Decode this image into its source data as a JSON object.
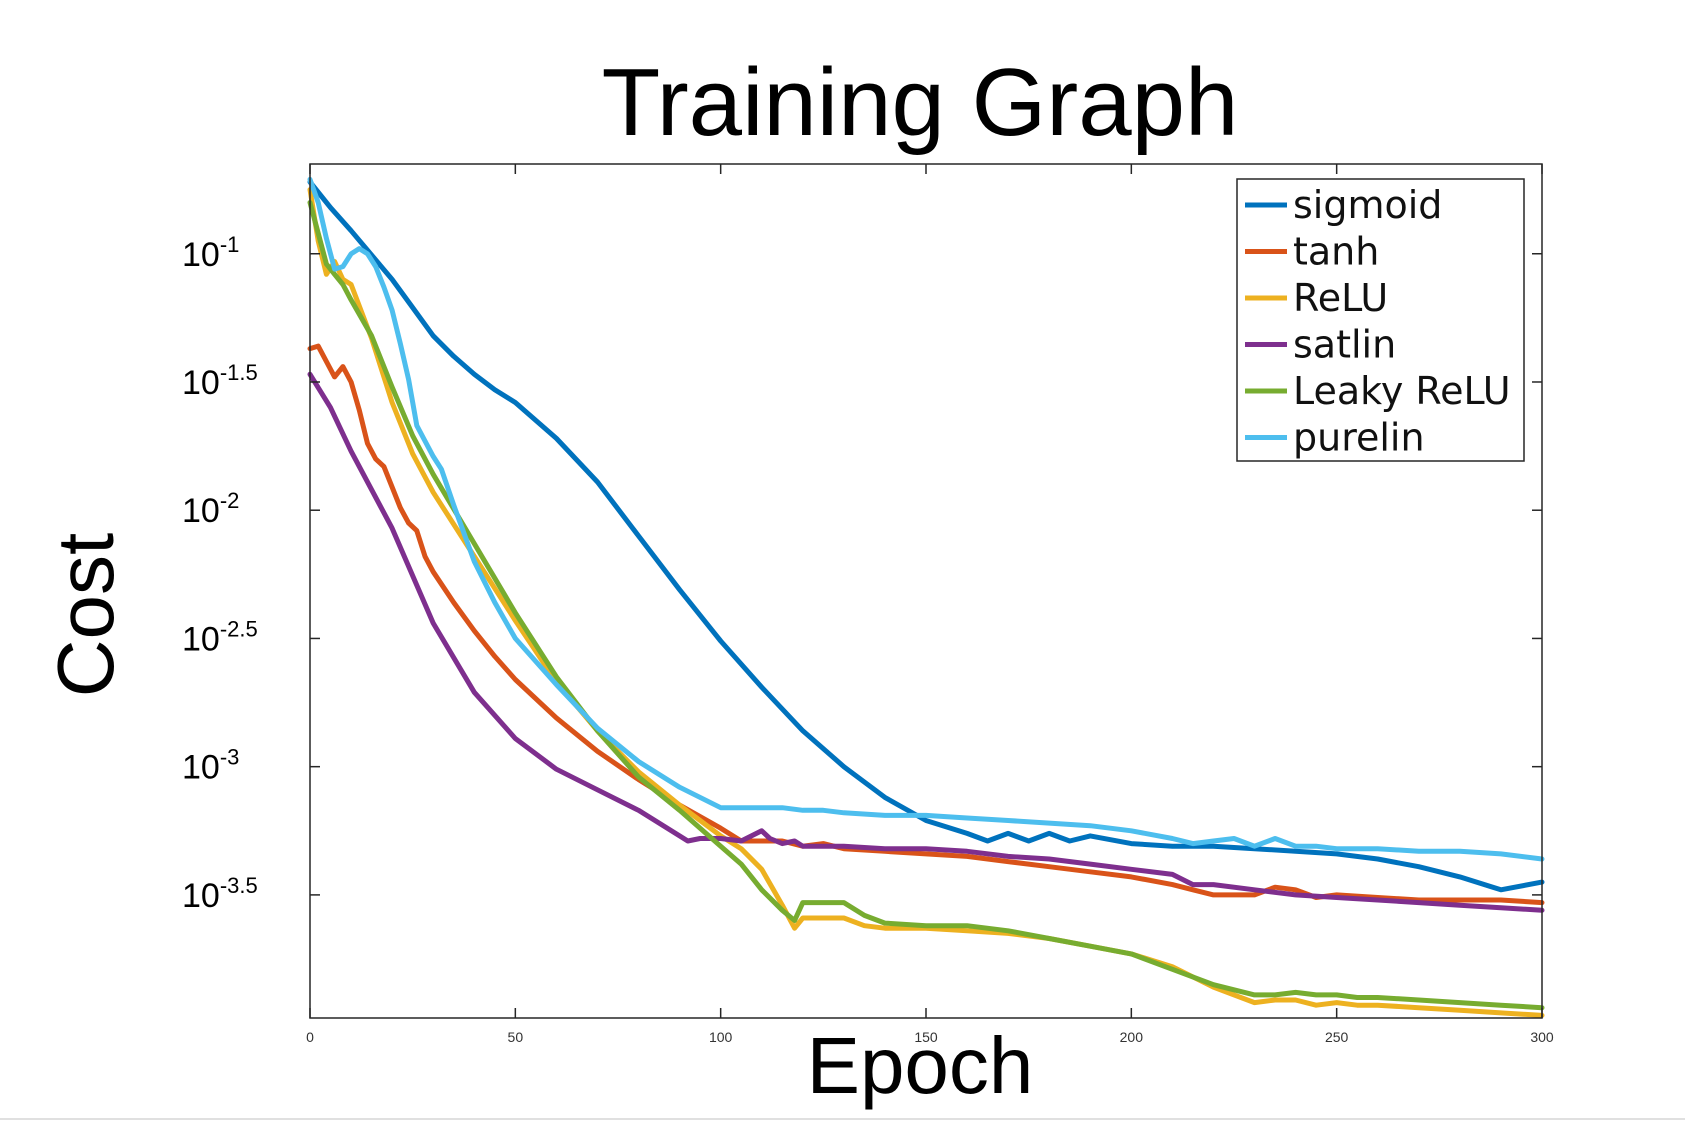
{
  "chart_data": {
    "type": "line",
    "title": "Training Graph",
    "xlabel": "Epoch",
    "ylabel": "Cost",
    "xlim": [
      0,
      300
    ],
    "ylog": true,
    "ylim_log10": [
      -3.98,
      -0.65
    ],
    "xticks": [
      0,
      50,
      100,
      150,
      200,
      250,
      300
    ],
    "xtick_labels": [
      "0",
      "50",
      "100",
      "150",
      "200",
      "250",
      "300"
    ],
    "yticks_log10": [
      -1,
      -1.5,
      -2,
      -2.5,
      -3,
      -3.5
    ],
    "ytick_labels": [
      {
        "base": "10",
        "exp": "-1"
      },
      {
        "base": "10",
        "exp": "-1.5"
      },
      {
        "base": "10",
        "exp": "-2"
      },
      {
        "base": "10",
        "exp": "-2.5"
      },
      {
        "base": "10",
        "exp": "-3"
      },
      {
        "base": "10",
        "exp": "-3.5"
      }
    ],
    "grid": false,
    "legend_position": "top-right",
    "series": [
      {
        "name": "sigmoid",
        "color": "#0072bd",
        "x": [
          0,
          5,
          10,
          20,
          25,
          30,
          35,
          40,
          45,
          50,
          60,
          70,
          80,
          90,
          100,
          110,
          120,
          130,
          140,
          150,
          160,
          165,
          170,
          175,
          180,
          185,
          190,
          200,
          210,
          220,
          230,
          240,
          250,
          260,
          270,
          280,
          290,
          300
        ],
        "y": [
          -0.72,
          -0.82,
          -0.91,
          -1.1,
          -1.21,
          -1.32,
          -1.4,
          -1.47,
          -1.53,
          -1.58,
          -1.72,
          -1.89,
          -2.1,
          -2.31,
          -2.51,
          -2.69,
          -2.86,
          -3.0,
          -3.12,
          -3.21,
          -3.26,
          -3.29,
          -3.26,
          -3.29,
          -3.26,
          -3.29,
          -3.27,
          -3.3,
          -3.31,
          -3.31,
          -3.32,
          -3.33,
          -3.34,
          -3.36,
          -3.39,
          -3.43,
          -3.48,
          -3.45
        ]
      },
      {
        "name": "tanh",
        "color": "#d95319",
        "x": [
          0,
          2,
          4,
          6,
          8,
          10,
          12,
          14,
          16,
          18,
          20,
          22,
          24,
          26,
          28,
          30,
          35,
          40,
          45,
          50,
          60,
          70,
          80,
          90,
          100,
          105,
          110,
          115,
          120,
          125,
          130,
          140,
          150,
          160,
          170,
          180,
          190,
          200,
          210,
          215,
          220,
          225,
          230,
          235,
          240,
          245,
          250,
          260,
          270,
          280,
          290,
          300
        ],
        "y": [
          -1.37,
          -1.36,
          -1.42,
          -1.48,
          -1.44,
          -1.5,
          -1.61,
          -1.74,
          -1.8,
          -1.83,
          -1.91,
          -1.99,
          -2.05,
          -2.08,
          -2.18,
          -2.24,
          -2.36,
          -2.47,
          -2.57,
          -2.66,
          -2.81,
          -2.94,
          -3.05,
          -3.15,
          -3.24,
          -3.29,
          -3.29,
          -3.29,
          -3.31,
          -3.3,
          -3.32,
          -3.33,
          -3.34,
          -3.35,
          -3.37,
          -3.39,
          -3.41,
          -3.43,
          -3.46,
          -3.48,
          -3.5,
          -3.5,
          -3.5,
          -3.47,
          -3.48,
          -3.51,
          -3.5,
          -3.51,
          -3.52,
          -3.52,
          -3.52,
          -3.53
        ]
      },
      {
        "name": "ReLU",
        "color": "#edb120",
        "x": [
          0,
          2,
          4,
          6,
          8,
          10,
          15,
          20,
          25,
          30,
          40,
          50,
          60,
          70,
          80,
          90,
          100,
          105,
          110,
          115,
          118,
          120,
          125,
          130,
          135,
          140,
          150,
          160,
          170,
          180,
          190,
          200,
          210,
          220,
          230,
          235,
          240,
          245,
          250,
          255,
          260,
          270,
          280,
          290,
          300
        ],
        "y": [
          -0.75,
          -0.95,
          -1.08,
          -1.03,
          -1.1,
          -1.12,
          -1.33,
          -1.58,
          -1.78,
          -1.93,
          -2.18,
          -2.43,
          -2.67,
          -2.86,
          -3.02,
          -3.15,
          -3.27,
          -3.32,
          -3.4,
          -3.54,
          -3.63,
          -3.59,
          -3.59,
          -3.59,
          -3.62,
          -3.63,
          -3.63,
          -3.64,
          -3.65,
          -3.67,
          -3.7,
          -3.73,
          -3.78,
          -3.86,
          -3.92,
          -3.91,
          -3.91,
          -3.93,
          -3.92,
          -3.93,
          -3.93,
          -3.94,
          -3.95,
          -3.96,
          -3.97
        ]
      },
      {
        "name": "satlin",
        "color": "#7e2f8e",
        "x": [
          0,
          5,
          10,
          20,
          30,
          40,
          50,
          60,
          70,
          80,
          90,
          92,
          95,
          100,
          105,
          110,
          112,
          115,
          118,
          120,
          130,
          140,
          150,
          160,
          170,
          180,
          190,
          200,
          210,
          215,
          220,
          230,
          240,
          250,
          260,
          270,
          280,
          290,
          300
        ],
        "y": [
          -1.47,
          -1.6,
          -1.77,
          -2.07,
          -2.44,
          -2.71,
          -2.89,
          -3.01,
          -3.09,
          -3.17,
          -3.27,
          -3.29,
          -3.28,
          -3.28,
          -3.29,
          -3.25,
          -3.28,
          -3.3,
          -3.29,
          -3.31,
          -3.31,
          -3.32,
          -3.32,
          -3.33,
          -3.35,
          -3.36,
          -3.38,
          -3.4,
          -3.42,
          -3.46,
          -3.46,
          -3.48,
          -3.5,
          -3.51,
          -3.52,
          -3.53,
          -3.54,
          -3.55,
          -3.56
        ]
      },
      {
        "name": "Leaky ReLU",
        "color": "#77ac30",
        "x": [
          0,
          2,
          4,
          6,
          8,
          10,
          15,
          20,
          25,
          30,
          40,
          50,
          60,
          70,
          80,
          90,
          100,
          105,
          110,
          115,
          118,
          120,
          125,
          130,
          135,
          140,
          150,
          160,
          170,
          180,
          190,
          200,
          210,
          220,
          230,
          235,
          240,
          245,
          250,
          255,
          260,
          270,
          280,
          290,
          300
        ],
        "y": [
          -0.8,
          -0.92,
          -1.04,
          -1.08,
          -1.12,
          -1.18,
          -1.32,
          -1.52,
          -1.71,
          -1.86,
          -2.13,
          -2.4,
          -2.65,
          -2.86,
          -3.04,
          -3.17,
          -3.31,
          -3.38,
          -3.48,
          -3.56,
          -3.6,
          -3.53,
          -3.53,
          -3.53,
          -3.58,
          -3.61,
          -3.62,
          -3.62,
          -3.64,
          -3.67,
          -3.7,
          -3.73,
          -3.79,
          -3.85,
          -3.89,
          -3.89,
          -3.88,
          -3.89,
          -3.89,
          -3.9,
          -3.9,
          -3.91,
          -3.92,
          -3.93,
          -3.94
        ]
      },
      {
        "name": "purelin",
        "color": "#4dbeee",
        "x": [
          0,
          2,
          4,
          6,
          8,
          10,
          12,
          14,
          16,
          18,
          20,
          22,
          24,
          26,
          28,
          30,
          32,
          35,
          40,
          45,
          50,
          60,
          70,
          80,
          90,
          100,
          105,
          110,
          115,
          120,
          125,
          130,
          140,
          150,
          160,
          170,
          180,
          190,
          200,
          210,
          215,
          220,
          225,
          230,
          235,
          240,
          245,
          250,
          260,
          270,
          280,
          290,
          300
        ],
        "y": [
          -0.71,
          -0.8,
          -0.94,
          -1.06,
          -1.05,
          -1.0,
          -0.98,
          -1.0,
          -1.05,
          -1.13,
          -1.22,
          -1.35,
          -1.49,
          -1.67,
          -1.73,
          -1.79,
          -1.84,
          -1.98,
          -2.2,
          -2.36,
          -2.5,
          -2.68,
          -2.85,
          -2.98,
          -3.08,
          -3.16,
          -3.16,
          -3.16,
          -3.16,
          -3.17,
          -3.17,
          -3.18,
          -3.19,
          -3.19,
          -3.2,
          -3.21,
          -3.22,
          -3.23,
          -3.25,
          -3.28,
          -3.3,
          -3.29,
          -3.28,
          -3.31,
          -3.28,
          -3.31,
          -3.31,
          -3.32,
          -3.32,
          -3.33,
          -3.33,
          -3.34,
          -3.36
        ]
      }
    ]
  }
}
